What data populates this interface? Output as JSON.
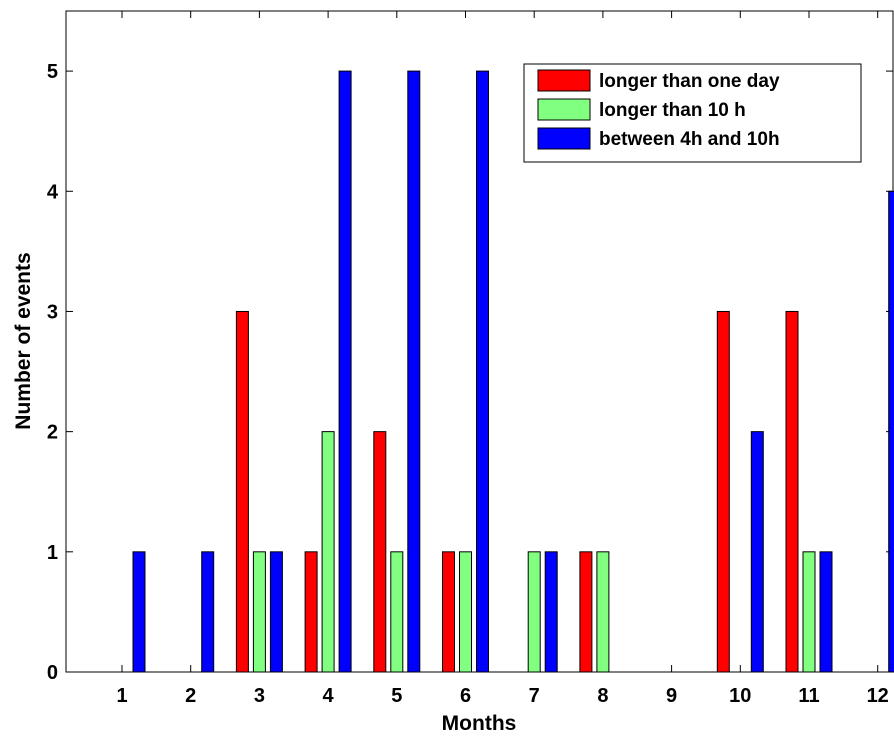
{
  "chart_data": {
    "type": "bar",
    "xlabel": "Months",
    "ylabel": "Number of events",
    "categories": [
      "1",
      "2",
      "3",
      "4",
      "5",
      "6",
      "7",
      "8",
      "9",
      "10",
      "11",
      "12"
    ],
    "ylim": [
      0,
      5.5
    ],
    "yticks": [
      0,
      1,
      2,
      3,
      4,
      5
    ],
    "grid": false,
    "legend_position": "top-right",
    "series": [
      {
        "name": "longer than one day",
        "color": "#ff0000",
        "values": [
          0,
          0,
          3,
          1,
          2,
          1,
          0,
          1,
          0,
          3,
          3,
          0
        ]
      },
      {
        "name": "longer than 10 h",
        "color": "#80ff80",
        "values": [
          0,
          0,
          1,
          2,
          1,
          1,
          1,
          1,
          0,
          0,
          1,
          0
        ]
      },
      {
        "name": "between 4h and 10h",
        "color": "#0000ff",
        "values": [
          1,
          1,
          1,
          5,
          5,
          5,
          1,
          0,
          0,
          2,
          1,
          4
        ]
      }
    ]
  }
}
